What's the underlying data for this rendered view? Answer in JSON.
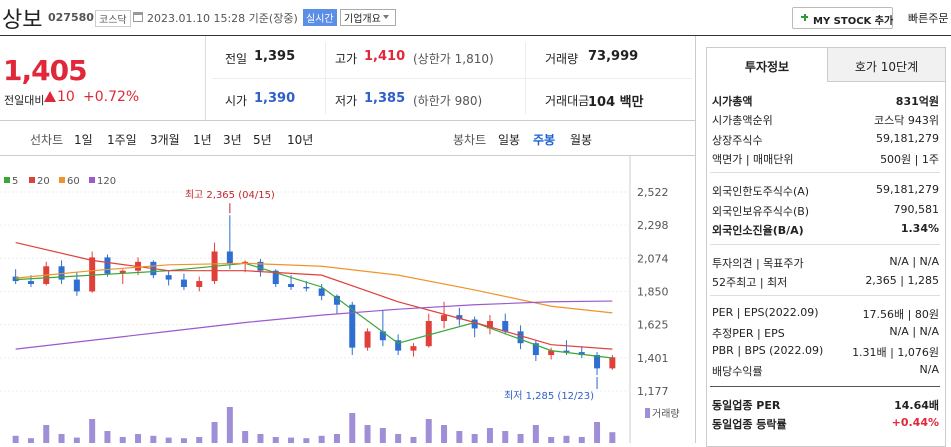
{
  "header": {
    "name": "상보",
    "code": "027580",
    "market": "코스닥",
    "time": "2023.01.10 15:28 기준(장중)",
    "realtime": "실시간",
    "overview": "기업개요",
    "mystock": "MY STOCK 추가",
    "quick_order": "빠른주문"
  },
  "price": {
    "current": "1,405",
    "change_label": "전일대비",
    "change": "10",
    "change_pct": "+0.72%"
  },
  "quotes": [
    [
      {
        "label": "전일",
        "value": "1,395"
      },
      {
        "label": "고가",
        "value": "1,410",
        "extra": "(상한가 1,810)"
      },
      {
        "label": "거래량",
        "value": "73,999"
      }
    ],
    [
      {
        "label": "시가",
        "value": "1,390"
      },
      {
        "label": "저가",
        "value": "1,385",
        "extra": "(하한가 980)"
      },
      {
        "label": "거래대금",
        "value": "104 백만"
      }
    ]
  ],
  "periods": {
    "line_label": "선차트",
    "line": [
      "1일",
      "1주일",
      "3개월",
      "1년",
      "3년",
      "5년",
      "10년"
    ],
    "candle_label": "봉차트",
    "candle": [
      "일봉",
      "주봉",
      "월봉"
    ]
  },
  "chart_data": {
    "type": "candlestick",
    "series": [
      {
        "name": "5",
        "color": "#3aa63a",
        "x": [
          0,
          5,
          10,
          15,
          20,
          25,
          30,
          35,
          39
        ],
        "values": [
          1930,
          1960,
          1990,
          2040,
          1880,
          1500,
          1640,
          1450,
          1400
        ]
      },
      {
        "name": "20",
        "color": "#e0403a",
        "x": [
          0,
          5,
          10,
          15,
          20,
          25,
          30,
          35,
          39
        ],
        "values": [
          2180,
          2060,
          1990,
          1990,
          1960,
          1780,
          1640,
          1490,
          1460
        ]
      },
      {
        "name": "60",
        "color": "#f0932b",
        "x": [
          0,
          5,
          10,
          15,
          20,
          25,
          30,
          35,
          39
        ],
        "values": [
          1940,
          1990,
          2030,
          2040,
          2020,
          1960,
          1860,
          1750,
          1705
        ]
      },
      {
        "name": "120",
        "color": "#9b59d0",
        "x": [
          0,
          5,
          10,
          15,
          20,
          25,
          30,
          35,
          39
        ],
        "values": [
          1460,
          1520,
          1580,
          1640,
          1690,
          1730,
          1760,
          1780,
          1785
        ]
      }
    ],
    "candles": {
      "open": [
        1950,
        1920,
        1900,
        2020,
        1930,
        1850,
        2080,
        1970,
        1990,
        2050,
        1960,
        1930,
        1880,
        1920,
        2120,
        2040,
        2050,
        1990,
        1900,
        1880,
        1870,
        1820,
        1760,
        1470,
        1580,
        1520,
        1450,
        1480,
        1650,
        1690,
        1660,
        1600,
        1650,
        1580,
        1500,
        1420,
        1450,
        1440,
        1420,
        1330
      ],
      "high": [
        2000,
        1960,
        2050,
        2060,
        1980,
        2120,
        2100,
        2000,
        2080,
        2060,
        1990,
        1970,
        1950,
        2180,
        2365,
        2060,
        2070,
        2000,
        1960,
        1920,
        1900,
        1830,
        1780,
        1600,
        1720,
        1560,
        1500,
        1700,
        1780,
        1740,
        1680,
        1690,
        1700,
        1620,
        1520,
        1470,
        1520,
        1480,
        1440,
        1420
      ],
      "low": [
        1900,
        1880,
        1890,
        1900,
        1820,
        1840,
        1950,
        1900,
        1960,
        1940,
        1890,
        1860,
        1850,
        1900,
        2000,
        1980,
        1950,
        1880,
        1860,
        1850,
        1790,
        1700,
        1420,
        1450,
        1480,
        1420,
        1410,
        1470,
        1600,
        1620,
        1540,
        1560,
        1560,
        1460,
        1380,
        1390,
        1420,
        1400,
        1285,
        1320
      ],
      "close": [
        1920,
        1900,
        2020,
        1930,
        1850,
        2080,
        1970,
        1990,
        2050,
        1960,
        1930,
        1880,
        1920,
        2120,
        2040,
        2050,
        1990,
        1900,
        1880,
        1870,
        1820,
        1760,
        1470,
        1580,
        1520,
        1450,
        1480,
        1650,
        1690,
        1660,
        1600,
        1650,
        1580,
        1500,
        1420,
        1450,
        1440,
        1420,
        1330,
        1405
      ]
    },
    "volume": [
      120,
      80,
      300,
      150,
      90,
      400,
      200,
      100,
      150,
      120,
      90,
      80,
      100,
      350,
      600,
      200,
      150,
      100,
      90,
      80,
      120,
      150,
      500,
      300,
      250,
      150,
      100,
      400,
      300,
      200,
      150,
      250,
      200,
      150,
      300,
      100,
      120,
      100,
      350,
      180
    ],
    "volume_label": "거래량",
    "volume_ylim": [
      0,
      600
    ],
    "ylim": [
      1177,
      2522
    ],
    "yticks": [
      {
        "value": 2522,
        "label": "2,522"
      },
      {
        "value": 2298,
        "label": "2,298"
      },
      {
        "value": 2074,
        "label": "2,074"
      },
      {
        "value": 1850,
        "label": "1,850"
      },
      {
        "value": 1625,
        "label": "1,625"
      },
      {
        "value": 1401,
        "label": "1,401"
      },
      {
        "value": 1177,
        "label": "1,177"
      }
    ],
    "annotations": [
      {
        "text": "최고 2,365 (04/15)",
        "value": 2365
      },
      {
        "text": "최저 1,285 (12/23)",
        "value": 1285
      }
    ],
    "up_color": "#e0403a",
    "down_color": "#2f6fd1",
    "volume_color": "#a08fd6"
  },
  "tabs": [
    "투자정보",
    "호가 10단계"
  ],
  "invest_info": [
    [
      {
        "label": "시가총액",
        "value": "831억원"
      },
      {
        "label": "시가총액순위",
        "value": "코스닥 943위"
      },
      {
        "label": "상장주식수",
        "value": "59,181,279"
      },
      {
        "label": "액면가 | 매매단위",
        "value": "500원 | 1주"
      }
    ],
    [
      {
        "label": "외국인한도주식수(A)",
        "value": "59,181,279"
      },
      {
        "label": "외국인보유주식수(B)",
        "value": "790,581"
      },
      {
        "label": "외국인소진율(B/A)",
        "value": "1.34%"
      }
    ],
    [
      {
        "label": "투자의견 | 목표주가",
        "value": "N/A | N/A"
      },
      {
        "label": "52주최고 | 최저",
        "value": "2,365 | 1,285"
      }
    ],
    [
      {
        "label": "PER | EPS(2022.09)",
        "value": "17.56배 | 80원"
      },
      {
        "label": "추정PER | EPS",
        "value": "N/A | N/A"
      },
      {
        "label": "PBR | BPS (2022.09)",
        "value": "1.31배 | 1,076원"
      },
      {
        "label": "배당수익률",
        "value": "N/A"
      }
    ],
    [
      {
        "label": "동일업종 PER",
        "value": "14.64배"
      },
      {
        "label": "동일업종 등락률",
        "value": "+0.44%"
      }
    ]
  ]
}
